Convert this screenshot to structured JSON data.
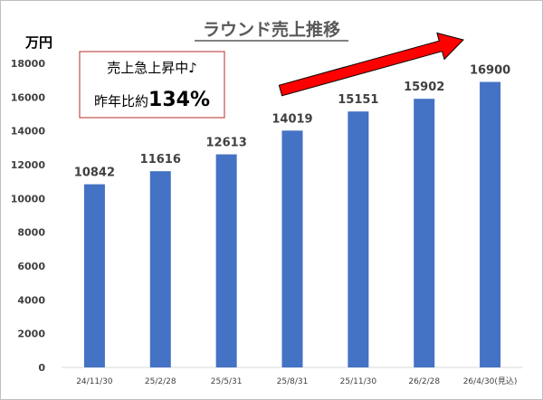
{
  "chart_data": {
    "type": "bar",
    "title": "ラウンド売上推移",
    "unit_label": "万円",
    "categories": [
      "24/11/30",
      "25/2/28",
      "25/5/31",
      "25/8/31",
      "25/11/30",
      "26/2/28",
      "26/4/30(見込)"
    ],
    "values": [
      10842,
      11616,
      12613,
      14019,
      15151,
      15902,
      16900
    ],
    "data_labels": [
      "10842",
      "11616",
      "12613",
      "14019",
      "15151",
      "15902",
      "16900"
    ],
    "ylim": [
      0,
      18000
    ],
    "y_ticks": [
      "0",
      "2000",
      "4000",
      "6000",
      "8000",
      "10000",
      "12000",
      "14000",
      "16000",
      "18000"
    ],
    "grid": false,
    "bar_color": "#4472C4",
    "annotation": {
      "line1": "売上急上昇中♪",
      "line2_prefix": "昨年比約",
      "line2_value": "134%",
      "border_color": "#C0504D"
    },
    "arrow_color": "#FF0000"
  }
}
